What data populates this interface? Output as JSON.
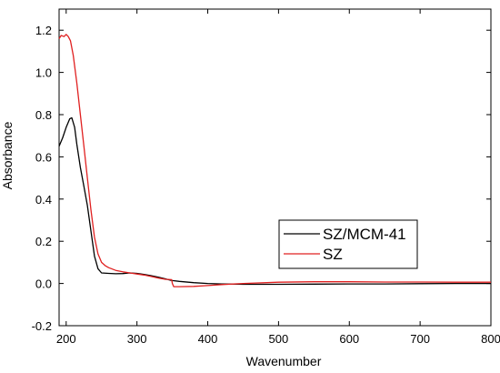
{
  "chart_data": {
    "type": "line",
    "title": "",
    "xlabel": "Wavenumber",
    "ylabel": "Absorbance",
    "xlim": [
      190,
      800
    ],
    "ylim": [
      -0.2,
      1.3
    ],
    "x_ticks": [
      200,
      300,
      400,
      500,
      600,
      700,
      800
    ],
    "y_ticks": [
      -0.2,
      0.0,
      0.2,
      0.4,
      0.6,
      0.8,
      1.0,
      1.2
    ],
    "x_tick_labels": [
      "200",
      "300",
      "400",
      "500",
      "600",
      "700",
      "800"
    ],
    "y_tick_labels": [
      "-0.2",
      "0.0",
      "0.2",
      "0.4",
      "0.6",
      "0.8",
      "1.0",
      "1.2"
    ],
    "grid": false,
    "legend_position": "center-right",
    "series": [
      {
        "name": "SZ/MCM-41",
        "color": "#000000",
        "x": [
          190,
          195,
          200,
          205,
          208,
          212,
          215,
          220,
          225,
          230,
          235,
          240,
          245,
          250,
          260,
          270,
          280,
          290,
          300,
          310,
          320,
          330,
          340,
          348,
          350,
          360,
          380,
          400,
          420,
          450,
          500,
          550,
          600,
          650,
          700,
          750,
          800
        ],
        "y": [
          0.65,
          0.69,
          0.74,
          0.78,
          0.785,
          0.74,
          0.66,
          0.55,
          0.46,
          0.37,
          0.25,
          0.13,
          0.07,
          0.05,
          0.048,
          0.046,
          0.047,
          0.05,
          0.048,
          0.043,
          0.037,
          0.03,
          0.022,
          0.015,
          0.014,
          0.01,
          0.004,
          0.0,
          -0.002,
          -0.004,
          -0.004,
          -0.003,
          -0.002,
          -0.002,
          -0.001,
          0.0,
          0.0
        ]
      },
      {
        "name": "SZ",
        "color": "#e02020",
        "x": [
          190,
          193,
          197,
          200,
          203,
          206,
          210,
          215,
          220,
          225,
          230,
          235,
          240,
          245,
          250,
          255,
          260,
          270,
          280,
          290,
          300,
          310,
          320,
          330,
          340,
          349,
          350,
          352,
          360,
          380,
          400,
          420,
          450,
          500,
          550,
          600,
          650,
          700,
          750,
          800
        ],
        "y": [
          1.16,
          1.175,
          1.17,
          1.18,
          1.17,
          1.15,
          1.08,
          0.95,
          0.8,
          0.65,
          0.5,
          0.35,
          0.22,
          0.14,
          0.1,
          0.085,
          0.075,
          0.062,
          0.055,
          0.05,
          0.045,
          0.04,
          0.033,
          0.026,
          0.02,
          0.018,
          0.0,
          -0.015,
          -0.015,
          -0.014,
          -0.01,
          -0.005,
          0.0,
          0.006,
          0.008,
          0.008,
          0.007,
          0.007,
          0.006,
          0.006
        ]
      }
    ]
  }
}
